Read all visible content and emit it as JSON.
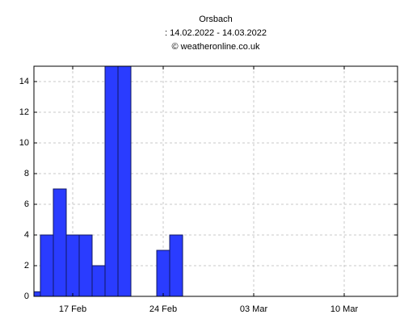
{
  "chart_data": {
    "type": "bar",
    "title": "Orsbach",
    "subtitle": ": 14.02.2022 - 14.03.2022",
    "source": "© weatheronline.co.uk",
    "categories": [
      null,
      null,
      null,
      "17 Feb",
      null,
      null,
      null,
      null,
      null,
      null,
      "24 Feb",
      null,
      null,
      null,
      null,
      null,
      null,
      "03 Mar",
      null,
      null,
      null,
      null,
      null,
      null,
      "10 Mar",
      null,
      null,
      null,
      null
    ],
    "values": [
      0.3,
      4,
      7,
      4,
      4,
      2,
      15,
      15,
      0,
      0,
      3,
      4,
      0,
      0,
      0,
      0,
      0,
      0,
      0,
      0,
      0,
      0,
      0,
      0,
      0,
      0,
      0,
      0,
      0
    ],
    "color": "#2a3cff",
    "ylim": [
      0,
      15
    ],
    "yticks": [
      0,
      2,
      4,
      6,
      8,
      10,
      12,
      14
    ],
    "grid": true
  }
}
